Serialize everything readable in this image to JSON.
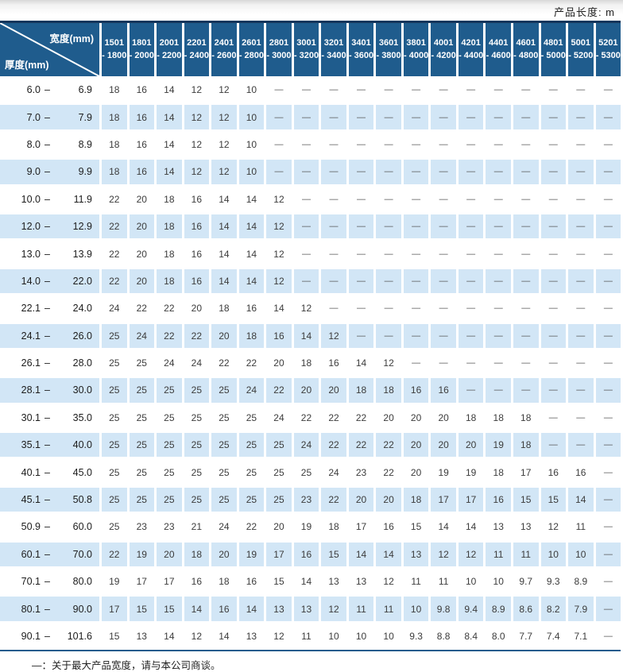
{
  "header_note": "产品长度: m",
  "colors": {
    "header_bg": "#1f5c8d",
    "stripe_bg": "#d2e6f6",
    "border_top": "#14365c"
  },
  "table": {
    "corner": {
      "width_label": "宽度(mm)",
      "thickness_label": "厚度(mm)"
    },
    "columns": [
      {
        "l1": "1501",
        "l2": "- 1800"
      },
      {
        "l1": "1801",
        "l2": "- 2000"
      },
      {
        "l1": "2001",
        "l2": "- 2200"
      },
      {
        "l1": "2201",
        "l2": "- 2400"
      },
      {
        "l1": "2401",
        "l2": "- 2600"
      },
      {
        "l1": "2601",
        "l2": "- 2800"
      },
      {
        "l1": "2801",
        "l2": "- 3000"
      },
      {
        "l1": "3001",
        "l2": "- 3200"
      },
      {
        "l1": "3201",
        "l2": "- 3400"
      },
      {
        "l1": "3401",
        "l2": "- 3600"
      },
      {
        "l1": "3601",
        "l2": "- 3800"
      },
      {
        "l1": "3801",
        "l2": "- 4000"
      },
      {
        "l1": "4001",
        "l2": "- 4200"
      },
      {
        "l1": "4201",
        "l2": "- 4400"
      },
      {
        "l1": "4401",
        "l2": "- 4600"
      },
      {
        "l1": "4601",
        "l2": "- 4800"
      },
      {
        "l1": "4801",
        "l2": "- 5000"
      },
      {
        "l1": "5001",
        "l2": "- 5200"
      },
      {
        "l1": "5201",
        "l2": "- 5300"
      }
    ],
    "rows": [
      {
        "label": "6.0 – 6.9",
        "values": [
          "18",
          "16",
          "14",
          "12",
          "12",
          "10",
          "—",
          "—",
          "—",
          "—",
          "—",
          "—",
          "—",
          "—",
          "—",
          "—",
          "—",
          "—",
          "—"
        ]
      },
      {
        "label": "7.0 – 7.9",
        "values": [
          "18",
          "16",
          "14",
          "12",
          "12",
          "10",
          "—",
          "—",
          "—",
          "—",
          "—",
          "—",
          "—",
          "—",
          "—",
          "—",
          "—",
          "—",
          "—"
        ]
      },
      {
        "label": "8.0 – 8.9",
        "values": [
          "18",
          "16",
          "14",
          "12",
          "12",
          "10",
          "—",
          "—",
          "—",
          "—",
          "—",
          "—",
          "—",
          "—",
          "—",
          "—",
          "—",
          "—",
          "—"
        ]
      },
      {
        "label": "9.0 – 9.9",
        "values": [
          "18",
          "16",
          "14",
          "12",
          "12",
          "10",
          "—",
          "—",
          "—",
          "—",
          "—",
          "—",
          "—",
          "—",
          "—",
          "—",
          "—",
          "—",
          "—"
        ]
      },
      {
        "label": "10.0 – 11.9",
        "values": [
          "22",
          "20",
          "18",
          "16",
          "14",
          "14",
          "12",
          "—",
          "—",
          "—",
          "—",
          "—",
          "—",
          "—",
          "—",
          "—",
          "—",
          "—",
          "—"
        ]
      },
      {
        "label": "12.0 – 12.9",
        "values": [
          "22",
          "20",
          "18",
          "16",
          "14",
          "14",
          "12",
          "—",
          "—",
          "—",
          "—",
          "—",
          "—",
          "—",
          "—",
          "—",
          "—",
          "—",
          "—"
        ]
      },
      {
        "label": "13.0 – 13.9",
        "values": [
          "22",
          "20",
          "18",
          "16",
          "14",
          "14",
          "12",
          "—",
          "—",
          "—",
          "—",
          "—",
          "—",
          "—",
          "—",
          "—",
          "—",
          "—",
          "—"
        ]
      },
      {
        "label": "14.0 – 22.0",
        "values": [
          "22",
          "20",
          "18",
          "16",
          "14",
          "14",
          "12",
          "—",
          "—",
          "—",
          "—",
          "—",
          "—",
          "—",
          "—",
          "—",
          "—",
          "—",
          "—"
        ]
      },
      {
        "label": "22.1 – 24.0",
        "values": [
          "24",
          "22",
          "22",
          "20",
          "18",
          "16",
          "14",
          "12",
          "—",
          "—",
          "—",
          "—",
          "—",
          "—",
          "—",
          "—",
          "—",
          "—",
          "—"
        ]
      },
      {
        "label": "24.1 – 26.0",
        "values": [
          "25",
          "24",
          "22",
          "22",
          "20",
          "18",
          "16",
          "14",
          "12",
          "—",
          "—",
          "—",
          "—",
          "—",
          "—",
          "—",
          "—",
          "—",
          "—"
        ]
      },
      {
        "label": "26.1 – 28.0",
        "values": [
          "25",
          "25",
          "24",
          "24",
          "22",
          "22",
          "20",
          "18",
          "16",
          "14",
          "12",
          "—",
          "—",
          "—",
          "—",
          "—",
          "—",
          "—",
          "—"
        ]
      },
      {
        "label": "28.1 – 30.0",
        "values": [
          "25",
          "25",
          "25",
          "25",
          "25",
          "24",
          "22",
          "20",
          "20",
          "18",
          "18",
          "16",
          "16",
          "—",
          "—",
          "—",
          "—",
          "—",
          "—"
        ]
      },
      {
        "label": "30.1 – 35.0",
        "values": [
          "25",
          "25",
          "25",
          "25",
          "25",
          "25",
          "24",
          "22",
          "22",
          "22",
          "20",
          "20",
          "20",
          "18",
          "18",
          "18",
          "—",
          "—",
          "—"
        ]
      },
      {
        "label": "35.1 – 40.0",
        "values": [
          "25",
          "25",
          "25",
          "25",
          "25",
          "25",
          "25",
          "24",
          "22",
          "22",
          "22",
          "20",
          "20",
          "20",
          "19",
          "18",
          "—",
          "—",
          "—"
        ]
      },
      {
        "label": "40.1 – 45.0",
        "values": [
          "25",
          "25",
          "25",
          "25",
          "25",
          "25",
          "25",
          "25",
          "24",
          "23",
          "22",
          "20",
          "19",
          "19",
          "18",
          "17",
          "16",
          "16",
          "—"
        ]
      },
      {
        "label": "45.1 – 50.8",
        "values": [
          "25",
          "25",
          "25",
          "25",
          "25",
          "25",
          "25",
          "23",
          "22",
          "20",
          "20",
          "18",
          "17",
          "17",
          "16",
          "15",
          "15",
          "14",
          "—"
        ]
      },
      {
        "label": "50.9 – 60.0",
        "values": [
          "25",
          "23",
          "23",
          "21",
          "24",
          "22",
          "20",
          "19",
          "18",
          "17",
          "16",
          "15",
          "14",
          "14",
          "13",
          "13",
          "12",
          "11",
          "—"
        ]
      },
      {
        "label": "60.1 – 70.0",
        "values": [
          "22",
          "19",
          "20",
          "18",
          "20",
          "19",
          "17",
          "16",
          "15",
          "14",
          "14",
          "13",
          "12",
          "12",
          "11",
          "11",
          "10",
          "10",
          "—"
        ]
      },
      {
        "label": "70.1 – 80.0",
        "values": [
          "19",
          "17",
          "17",
          "16",
          "18",
          "16",
          "15",
          "14",
          "13",
          "13",
          "12",
          "11",
          "11",
          "10",
          "10",
          "9.7",
          "9.3",
          "8.9",
          "—"
        ]
      },
      {
        "label": "80.1 – 90.0",
        "values": [
          "17",
          "15",
          "15",
          "14",
          "16",
          "14",
          "13",
          "13",
          "12",
          "11",
          "11",
          "10",
          "9.8",
          "9.4",
          "8.9",
          "8.6",
          "8.2",
          "7.9",
          "—"
        ]
      },
      {
        "label": "90.1 – 101.6",
        "values": [
          "15",
          "13",
          "14",
          "12",
          "14",
          "13",
          "12",
          "11",
          "10",
          "10",
          "10",
          "9.3",
          "8.8",
          "8.4",
          "8.0",
          "7.7",
          "7.4",
          "7.1",
          "—"
        ]
      }
    ]
  },
  "footer": {
    "note": "—：关于最大产品宽度，请与本公司商谈。"
  }
}
